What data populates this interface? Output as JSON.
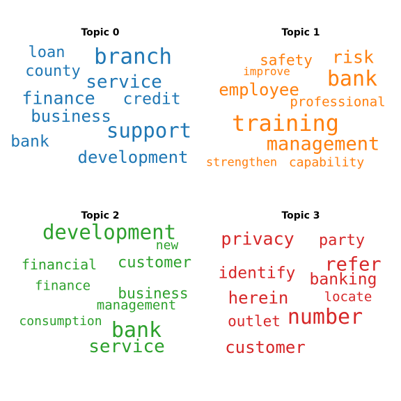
{
  "chart_data": {
    "type": "wordcloud",
    "topics": [
      {
        "title": "Topic 0",
        "color": "#1f77b4",
        "words": [
          "loan",
          "branch",
          "county",
          "service",
          "finance",
          "credit",
          "business",
          "support",
          "bank",
          "development"
        ]
      },
      {
        "title": "Topic 1",
        "color": "#ff7f0e",
        "words": [
          "risk",
          "safety",
          "improve",
          "bank",
          "employee",
          "professional",
          "training",
          "management",
          "strengthen",
          "capability"
        ]
      },
      {
        "title": "Topic 2",
        "color": "#2ca02c",
        "words": [
          "development",
          "new",
          "financial",
          "customer",
          "finance",
          "business",
          "management",
          "consumption",
          "bank",
          "service"
        ]
      },
      {
        "title": "Topic 3",
        "color": "#d62728",
        "words": [
          "privacy",
          "party",
          "refer",
          "identify",
          "banking",
          "herein",
          "locate",
          "number",
          "outlet",
          "customer"
        ]
      }
    ]
  }
}
